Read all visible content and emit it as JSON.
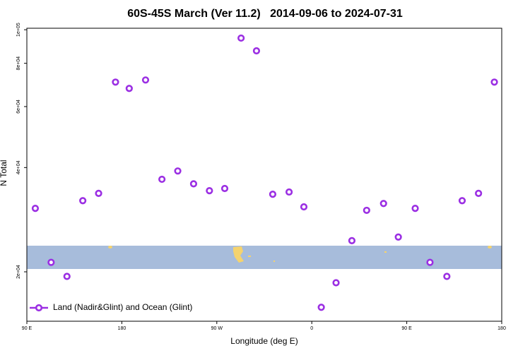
{
  "chart_data": {
    "type": "scatter",
    "title": "60S-45S March (Ver 11.2)   2014-09-06 to 2024-07-31",
    "x_label": "Longitude (deg E)",
    "y_label": "N Total",
    "x": [
      98,
      113,
      128,
      143,
      158,
      174,
      187,
      202.5,
      218,
      233,
      248,
      263,
      277.5,
      293,
      307.6,
      323,
      338.5,
      352.5,
      369,
      383,
      398,
      412,
      428,
      442,
      458,
      472,
      488,
      502.5,
      518,
      533
    ],
    "series": [
      {
        "name": "Land (Nadir&Glint) and Ocean (Glint)",
        "color": "#9b2fe3",
        "values": [
          30500,
          21300,
          19400,
          32100,
          33700,
          70600,
          67700,
          71600,
          37000,
          39100,
          35900,
          34300,
          34800,
          94600,
          86900,
          33500,
          34000,
          30800,
          15800,
          18600,
          24600,
          30100,
          31500,
          25200,
          30500,
          21300,
          19400,
          32100,
          33700,
          70600
        ]
      }
    ],
    "xlim": [
      90,
      540
    ],
    "xticks": [
      {
        "value": 90,
        "label": "90 E"
      },
      180,
      {
        "value": 270,
        "label": "90 W"
      },
      {
        "value": 360,
        "label": "0"
      },
      {
        "value": 450,
        "label": "90 E"
      },
      {
        "value": 540,
        "label": "180"
      }
    ],
    "ylim": [
      14400,
      101000
    ],
    "ylog": true,
    "yticks": [
      {
        "value": 20000,
        "label": "2e+04"
      },
      {
        "value": 40000,
        "label": "4e+04"
      },
      {
        "value": 60000,
        "label": "6e+04"
      },
      {
        "value": 80000,
        "label": "8e+04"
      },
      {
        "value": 100000,
        "label": "1e+05"
      }
    ],
    "legend": "bottom left"
  }
}
